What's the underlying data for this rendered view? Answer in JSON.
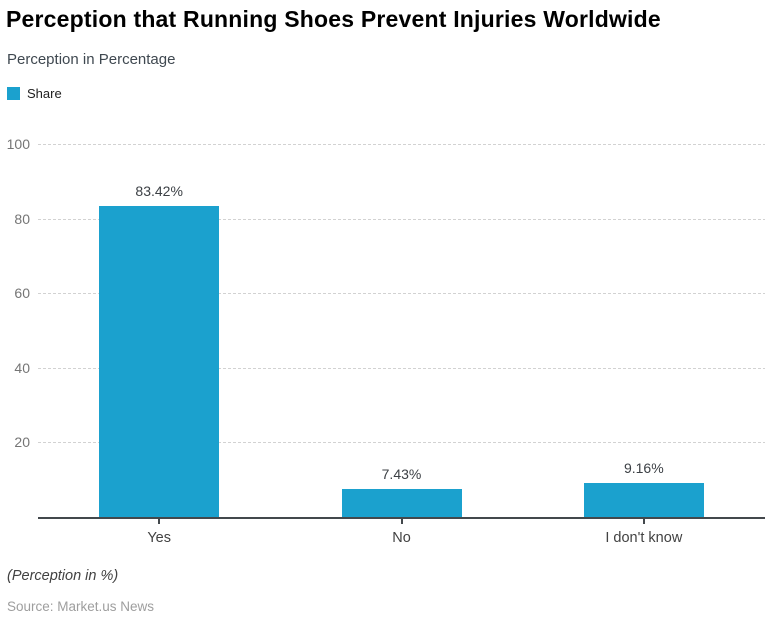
{
  "header": {
    "title": "Perception that Running Shoes Prevent Injuries Worldwide",
    "subtitle": "Perception in Percentage"
  },
  "legend": {
    "items": [
      {
        "label": "Share",
        "color": "#1ba1ce"
      }
    ]
  },
  "chart_data": {
    "type": "bar",
    "title": "Perception that Running Shoes Prevent Injuries Worldwide",
    "series_name": "Share",
    "categories": [
      "Yes",
      "No",
      "I don't know"
    ],
    "values": [
      83.42,
      7.43,
      9.16
    ],
    "value_labels": [
      "83.42%",
      "7.43%",
      "9.16%"
    ],
    "bar_color": "#1ba1ce",
    "xlabel": "",
    "ylabel": "",
    "ylim": [
      0,
      100
    ],
    "yticks": [
      20,
      40,
      60,
      80,
      100
    ],
    "grid": true,
    "gridline_style": "dashed",
    "legend_position": "top-left"
  },
  "footer": {
    "note": "(Perception in %)",
    "source": "Source: Market.us News"
  }
}
